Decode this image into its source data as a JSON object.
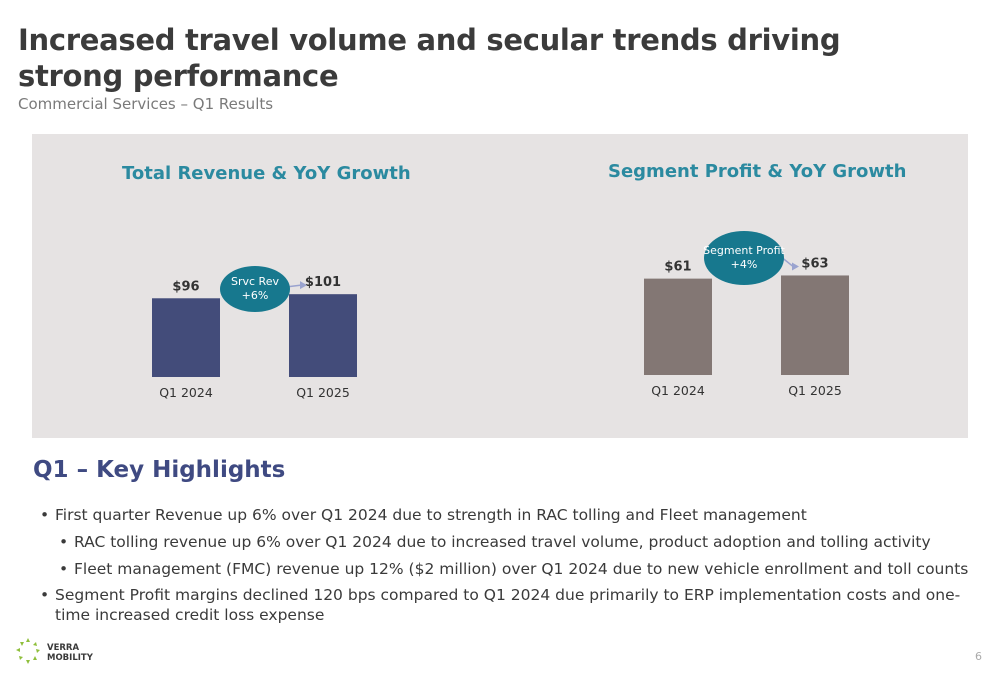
{
  "title": "Increased travel volume and secular trends driving strong performance",
  "subtitle": "Commercial Services – Q1 Results",
  "chart_data": [
    {
      "type": "bar",
      "title": "Total Revenue & YoY Growth",
      "categories": [
        "Q1 2024",
        "Q1 2025"
      ],
      "values": [
        96,
        101
      ],
      "value_labels": [
        "$96",
        "$101"
      ],
      "color": "#434c7a",
      "callout": [
        "Srvc Rev",
        "+6%"
      ]
    },
    {
      "type": "bar",
      "title": "Segment Profit & YoY Growth",
      "categories": [
        "Q1 2024",
        "Q1 2025"
      ],
      "values": [
        61,
        63
      ],
      "value_labels": [
        "$61",
        "$63"
      ],
      "color": "#837774",
      "callout": [
        "Segment Profit",
        "+4%"
      ]
    }
  ],
  "highlights": {
    "heading": "Q1 – Key Highlights",
    "items": [
      "First quarter Revenue up 6% over Q1 2024 due to strength in RAC tolling and Fleet management",
      "RAC tolling revenue up 6% over Q1 2024 due to increased travel volume, product adoption and tolling activity",
      "Fleet management (FMC) revenue up 12% ($2 million) over Q1 2024 due to new vehicle enrollment and toll counts",
      "Segment Profit margins declined 120 bps compared to Q1 2024 due primarily to ERP implementation costs and one-time increased credit loss expense"
    ]
  },
  "logo": {
    "line1": "VERRA",
    "line2": "MOBILITY"
  },
  "page_number": "6",
  "colors": {
    "accent_teal": "#2b8aa0",
    "bubble": "#17788e",
    "heading_navy": "#3f4a82",
    "panel_bg": "#e6e3e3"
  }
}
